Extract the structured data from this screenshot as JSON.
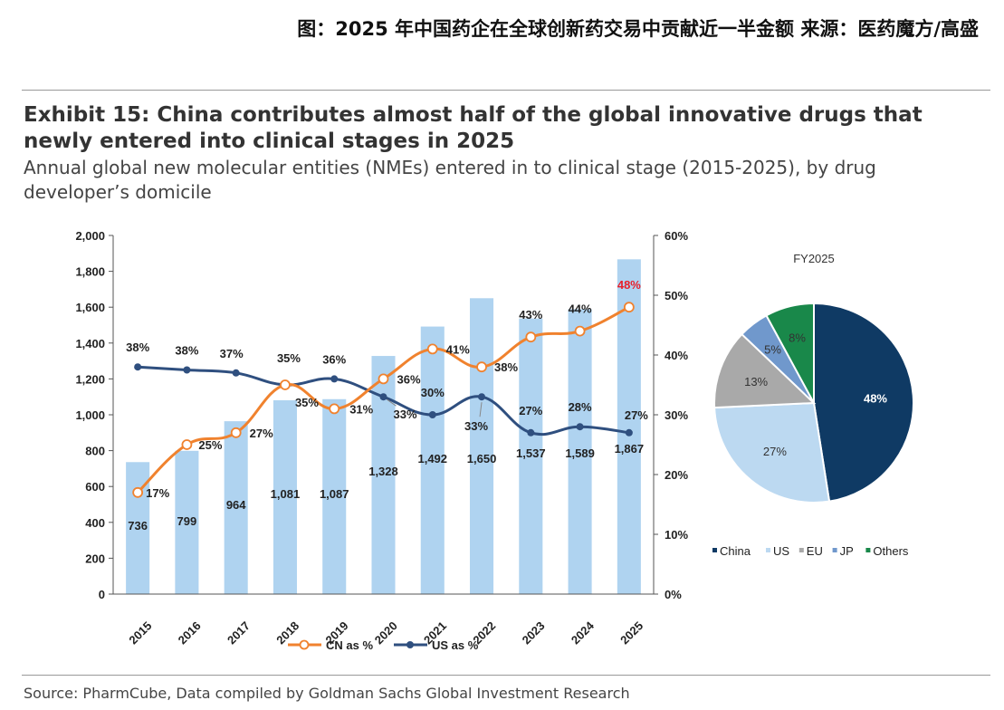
{
  "header": {
    "cn_title": "图：2025 年中国药企在全球创新药交易中贡献近一半金额   来源：医药魔方/高盛"
  },
  "exhibit": {
    "title": "Exhibit 15: China contributes almost half of the global innovative drugs that newly entered into clinical stages in 2025",
    "subtitle": "Annual global new molecular entities (NMEs) entered in to clinical stage (2015-2025), by drug developer’s domicile"
  },
  "source": "Source: PharmCube, Data compiled by Goldman Sachs Global Investment Research",
  "colors": {
    "bar": "#AFD3F0",
    "cn_line": "#F0822E",
    "us_line": "#2F4F7F",
    "highlight": "#E8202A"
  },
  "chart_data": [
    {
      "type": "bar-line-combo",
      "categories": [
        "2015",
        "2016",
        "2017",
        "2018",
        "2019",
        "2020",
        "2021",
        "2022",
        "2023",
        "2024",
        "2025"
      ],
      "bars": {
        "name": "NMEs entered clinical stage",
        "values": [
          736,
          799,
          964,
          1081,
          1087,
          1328,
          1492,
          1650,
          1537,
          1589,
          1867
        ],
        "labels": [
          "736",
          "799",
          "964",
          "1,081",
          "1,087",
          "1,328",
          "1,492",
          "1,650",
          "1,537",
          "1,589",
          "1,867"
        ]
      },
      "y_left": {
        "min": 0,
        "max": 2000,
        "ticks": [
          "0",
          "200",
          "400",
          "600",
          "800",
          "1,000",
          "1,200",
          "1,400",
          "1,600",
          "1,800",
          "2,000"
        ]
      },
      "y_right": {
        "min": 0,
        "max": 60,
        "ticks": [
          "0%",
          "10%",
          "20%",
          "30%",
          "40%",
          "50%",
          "60%"
        ]
      },
      "series": [
        {
          "name": "CN as %",
          "values": [
            17,
            25,
            27,
            35,
            31,
            36,
            41,
            38,
            43,
            44,
            48
          ],
          "labels": [
            "17%",
            "25%",
            "27%",
            "35%",
            "31%",
            "36%",
            "41%",
            "38%",
            "43%",
            "44%",
            "48%"
          ]
        },
        {
          "name": "US as %",
          "values": [
            38,
            37.5,
            37,
            35,
            36,
            33,
            30,
            33,
            27,
            28,
            27
          ],
          "labels": [
            "38%",
            "38%",
            "37%",
            "35%",
            "36%",
            "33%",
            "30%",
            "33%",
            "27%",
            "28%",
            "27%"
          ]
        }
      ],
      "legend": [
        "CN as %",
        "US as %"
      ],
      "legend_position": "bottom"
    },
    {
      "type": "pie",
      "title": "FY2025",
      "slices": [
        {
          "name": "China",
          "value": 48,
          "label": "48%",
          "color": "#0F3A64"
        },
        {
          "name": "US",
          "value": 27,
          "label": "27%",
          "color": "#BCD9F1"
        },
        {
          "name": "EU",
          "value": 13,
          "label": "13%",
          "color": "#A9A9A9"
        },
        {
          "name": "JP",
          "value": 5,
          "label": "5%",
          "color": "#7098CC"
        },
        {
          "name": "Others",
          "value": 8,
          "label": "8%",
          "color": "#19884A"
        }
      ],
      "legend_position": "bottom"
    }
  ]
}
